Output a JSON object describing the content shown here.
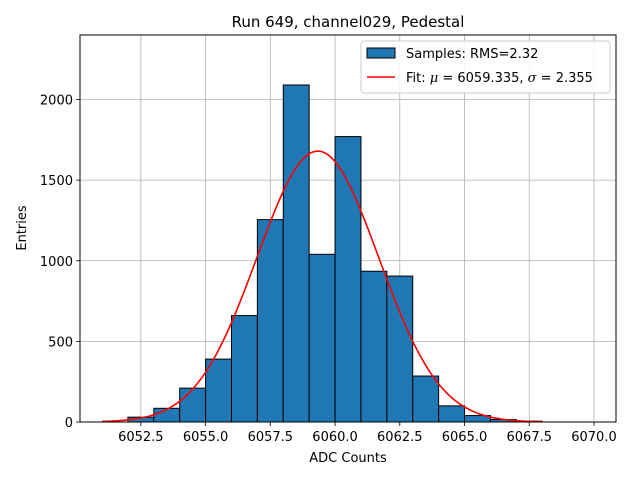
{
  "chart_data": {
    "type": "histogram",
    "title": "Run 649, channel029, Pedestal",
    "xlabel": "ADC Counts",
    "ylabel": "Entries",
    "xlim": [
      6050.15,
      6070.85
    ],
    "ylim": [
      0,
      2400
    ],
    "grid": true,
    "xticks": [
      6052.5,
      6055.0,
      6057.5,
      6060.0,
      6062.5,
      6065.0,
      6067.5,
      6070.0
    ],
    "xtick_labels": [
      "6052.5",
      "6055.0",
      "6057.5",
      "6060.0",
      "6062.5",
      "6065.0",
      "6067.5",
      "6070.0"
    ],
    "yticks": [
      0,
      500,
      1000,
      1500,
      2000
    ],
    "ytick_labels": [
      "0",
      "500",
      "1000",
      "1500",
      "2000"
    ],
    "bin_width": 1,
    "bins": [
      {
        "left": 6052,
        "count": 30
      },
      {
        "left": 6053,
        "count": 85
      },
      {
        "left": 6054,
        "count": 210
      },
      {
        "left": 6055,
        "count": 390
      },
      {
        "left": 6056,
        "count": 660
      },
      {
        "left": 6057,
        "count": 1255
      },
      {
        "left": 6058,
        "count": 2090
      },
      {
        "left": 6059,
        "count": 1040
      },
      {
        "left": 6060,
        "count": 1770
      },
      {
        "left": 6061,
        "count": 935
      },
      {
        "left": 6062,
        "count": 905
      },
      {
        "left": 6063,
        "count": 285
      },
      {
        "left": 6064,
        "count": 100
      },
      {
        "left": 6065,
        "count": 40
      },
      {
        "left": 6066,
        "count": 15
      },
      {
        "left": 6067,
        "count": 5
      }
    ],
    "fit": {
      "mu": 6059.335,
      "sigma": 2.355,
      "amplitude": 1680,
      "x_range": [
        6051.0,
        6068.0
      ]
    },
    "legend": {
      "position": "top-right",
      "samples_label": "Samples: RMS=2.32",
      "fit_prefix": "Fit: ",
      "fit_mu_symbol": "μ",
      "fit_mu_text": " = 6059.335, ",
      "fit_sigma_symbol": "σ",
      "fit_sigma_text": " = 2.355"
    },
    "colors": {
      "bar_fill": "#1f77b4",
      "bar_edge": "#000000",
      "fit_line": "#ff0000",
      "grid": "#b0b0b0"
    }
  }
}
